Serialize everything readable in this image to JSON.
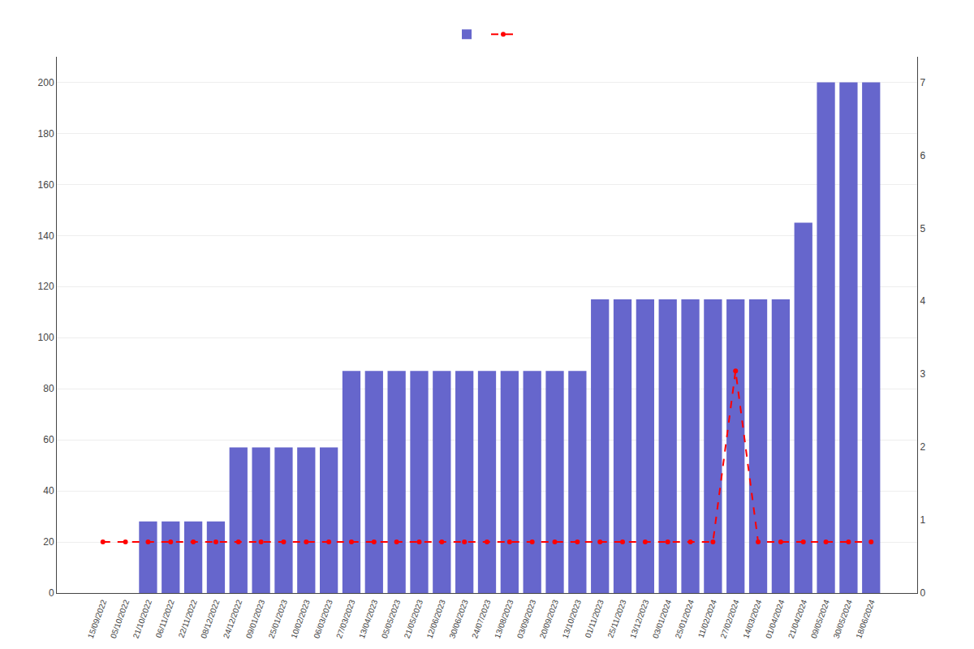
{
  "chart_data": {
    "type": "bar",
    "categories": [
      "15/09/2022",
      "05/10/2022",
      "21/10/2022",
      "06/11/2022",
      "22/11/2022",
      "08/12/2022",
      "24/12/2022",
      "09/01/2023",
      "25/01/2023",
      "10/02/2023",
      "06/03/2023",
      "27/03/2023",
      "13/04/2023",
      "05/05/2023",
      "21/05/2023",
      "12/06/2023",
      "30/06/2023",
      "24/07/2023",
      "13/08/2023",
      "03/09/2023",
      "20/09/2023",
      "13/10/2023",
      "01/11/2023",
      "25/11/2023",
      "13/12/2023",
      "03/01/2024",
      "25/01/2024",
      "11/02/2024",
      "27/02/2024",
      "14/03/2024",
      "01/04/2024",
      "21/04/2024",
      "09/05/2024",
      "30/05/2024",
      "18/06/2024"
    ],
    "series": [
      {
        "type": "bar",
        "color": "#6666cc",
        "values": [
          0,
          0,
          28,
          28,
          28,
          28,
          57,
          57,
          57,
          57,
          57,
          87,
          87,
          87,
          87,
          87,
          87,
          87,
          87,
          87,
          87,
          87,
          115,
          115,
          115,
          115,
          115,
          115,
          115,
          115,
          115,
          145,
          200,
          200,
          200
        ]
      },
      {
        "type": "line",
        "color": "#ff0000",
        "line_style": "dashed",
        "marker": "circle",
        "values": [
          20,
          20,
          20,
          20,
          20,
          20,
          20,
          20,
          20,
          20,
          20,
          20,
          20,
          20,
          20,
          20,
          20,
          20,
          20,
          20,
          20,
          20,
          20,
          20,
          20,
          20,
          20,
          20,
          87,
          20,
          20,
          20,
          20,
          20,
          20
        ]
      }
    ],
    "ylim": [
      0,
      210
    ],
    "yticks": [
      0,
      20,
      40,
      60,
      80,
      100,
      120,
      140,
      160,
      180,
      200
    ],
    "y2lim": [
      0,
      7.35
    ],
    "y2ticks": [
      0,
      1,
      2,
      3,
      4,
      5,
      6,
      7
    ],
    "grid": true,
    "legend": "upper center"
  }
}
